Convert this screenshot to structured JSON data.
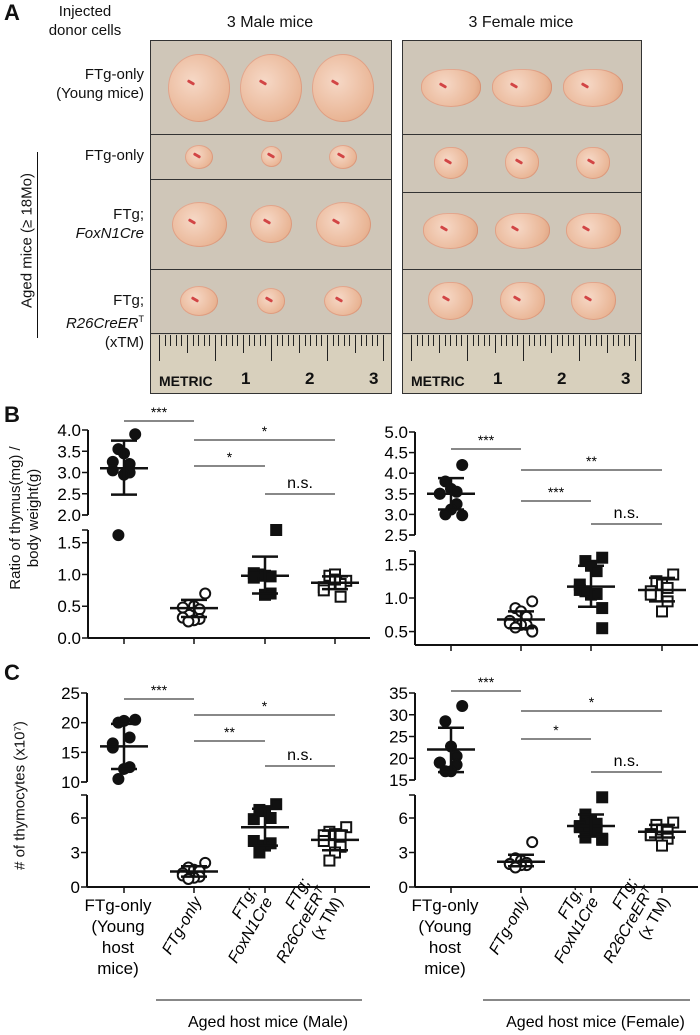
{
  "panel_a": {
    "letter": "A",
    "header_left": "Injected donor cells",
    "col_male": "3 Male mice",
    "col_female": "3 Female mice",
    "rows": [
      {
        "line1": "FTg-only",
        "line2": "(Young mice)",
        "line3": ""
      },
      {
        "line1": "FTg-only",
        "line2": "",
        "line3": ""
      },
      {
        "line1": "FTg;",
        "line2": "FoxN1Cre",
        "line3": ""
      },
      {
        "line1": "FTg;",
        "line2": "R26CreER",
        "sup": "T",
        "line3": "(xTM)"
      }
    ],
    "aged_label": "Aged mice (≥ 18Mo)",
    "ruler_metric": "METRIC",
    "ruler_marks": [
      "1",
      "2",
      "3"
    ]
  },
  "panel_b": {
    "letter": "B",
    "ylabel_line1": "Ratio of thymus(mg) /",
    "ylabel_line2": "body weight(g)"
  },
  "panel_c": {
    "letter": "C",
    "ylabel": "# of thymocytes (x10⁷)"
  },
  "xaxis": {
    "labels": [
      {
        "lines": [
          "FTg-only",
          "(Young",
          "host",
          "mice)"
        ]
      },
      {
        "lines": [
          "FTg-only"
        ]
      },
      {
        "lines": [
          "FTg;",
          "FoxN1Cre"
        ]
      },
      {
        "lines": [
          "FTg;",
          "R26CreERᵀ",
          "(x TM)"
        ]
      }
    ],
    "group_male": "Aged host mice (Male)",
    "group_female": "Aged host mice (Female)"
  },
  "chart_data": [
    {
      "id": "B-male",
      "type": "scatter",
      "categories": [
        "FTg-only (Young host mice)",
        "FTg-only",
        "FTg; FoxN1Cre",
        "FTg; R26CreERT (x TM)"
      ],
      "broken_axis": true,
      "upper_range": [
        2.0,
        4.0
      ],
      "upper_ticks": [
        "2.0",
        "2.5",
        "3.0",
        "3.5",
        "4.0"
      ],
      "lower_range": [
        0.0,
        1.7
      ],
      "lower_ticks": [
        "0.0",
        "0.5",
        "1.0",
        "1.5"
      ],
      "groups": [
        {
          "marker": "filled-circle",
          "values": [
            3.9,
            3.55,
            3.45,
            3.2,
            3.25,
            3.05,
            3.0,
            2.95,
            1.62
          ],
          "mean": 3.1,
          "sd": [
            2.48,
            3.75
          ]
        },
        {
          "marker": "open-circle",
          "values": [
            0.7,
            0.52,
            0.5,
            0.45,
            0.48,
            0.32,
            0.3,
            0.28,
            0.26
          ],
          "mean": 0.47,
          "sd": [
            0.33,
            0.6
          ]
        },
        {
          "marker": "filled-square",
          "values": [
            1.7,
            1.0,
            0.98,
            0.97,
            1.02,
            0.95,
            0.7,
            0.68
          ],
          "mean": 0.98,
          "sd": [
            0.7,
            1.28
          ]
        },
        {
          "marker": "open-square",
          "values": [
            0.9,
            0.98,
            1.0,
            0.85,
            0.8,
            0.75,
            0.65,
            0.92
          ],
          "mean": 0.87,
          "sd": [
            0.77,
            0.97
          ]
        }
      ],
      "significance": [
        {
          "pair": [
            1,
            2
          ],
          "label": "***"
        },
        {
          "pair": [
            2,
            4
          ],
          "label": "*"
        },
        {
          "pair": [
            2,
            3
          ],
          "label": "*"
        },
        {
          "pair": [
            3,
            4
          ],
          "label": "n.s."
        }
      ]
    },
    {
      "id": "B-female",
      "type": "scatter",
      "categories": [
        "FTg-only (Young host mice)",
        "FTg-only",
        "FTg; FoxN1Cre",
        "FTg; R26CreERT (x TM)"
      ],
      "broken_axis": true,
      "upper_range": [
        2.5,
        5.0
      ],
      "upper_ticks": [
        "2.5",
        "3.0",
        "3.5",
        "4.0",
        "4.5",
        "5.0"
      ],
      "lower_range": [
        0.3,
        1.7
      ],
      "lower_ticks": [
        "0.5",
        "1.0",
        "1.5"
      ],
      "groups": [
        {
          "marker": "filled-circle",
          "values": [
            4.2,
            3.8,
            3.62,
            3.55,
            3.5,
            3.5,
            3.25,
            3.12,
            3.0,
            2.98
          ],
          "mean": 3.5,
          "sd": [
            3.12,
            3.88
          ]
        },
        {
          "marker": "open-circle",
          "values": [
            0.95,
            0.85,
            0.8,
            0.72,
            0.66,
            0.62,
            0.6,
            0.6,
            0.56,
            0.52,
            0.5
          ],
          "mean": 0.68,
          "sd": [
            0.55,
            0.8
          ]
        },
        {
          "marker": "filled-square",
          "values": [
            1.6,
            1.55,
            1.48,
            1.4,
            1.2,
            1.12,
            1.06,
            1.05,
            1.1,
            0.85,
            0.55
          ],
          "mean": 1.17,
          "sd": [
            0.87,
            1.48
          ]
        },
        {
          "marker": "open-square",
          "values": [
            1.35,
            1.25,
            1.2,
            1.15,
            1.1,
            1.05,
            0.95,
            0.8
          ],
          "mean": 1.12,
          "sd": [
            0.95,
            1.3
          ]
        }
      ],
      "significance": [
        {
          "pair": [
            1,
            2
          ],
          "label": "***"
        },
        {
          "pair": [
            2,
            4
          ],
          "label": "**"
        },
        {
          "pair": [
            2,
            3
          ],
          "label": "***"
        },
        {
          "pair": [
            3,
            4
          ],
          "label": "n.s."
        }
      ]
    },
    {
      "id": "C-male",
      "type": "scatter",
      "categories": [
        "FTg-only (Young host mice)",
        "FTg-only",
        "FTg; FoxN1Cre",
        "FTg; R26CreERT (x TM)"
      ],
      "broken_axis": true,
      "upper_range": [
        10,
        25
      ],
      "upper_ticks": [
        "10",
        "15",
        "20",
        "25"
      ],
      "lower_range": [
        0,
        8
      ],
      "lower_ticks": [
        "0",
        "3",
        "6"
      ],
      "groups": [
        {
          "marker": "filled-circle",
          "values": [
            20.5,
            20.0,
            20.3,
            17.5,
            16.5,
            15.8,
            12.5,
            12.2,
            10.5
          ],
          "mean": 16.0,
          "sd": [
            12.2,
            19.8
          ]
        },
        {
          "marker": "open-circle",
          "values": [
            2.1,
            1.7,
            1.5,
            1.4,
            1.2,
            1.0,
            0.9,
            0.8,
            0.7
          ],
          "mean": 1.35,
          "sd": [
            0.9,
            1.8
          ]
        },
        {
          "marker": "filled-square",
          "values": [
            7.2,
            6.7,
            6.6,
            6.0,
            5.9,
            4.0,
            3.8,
            3.6,
            3.0
          ],
          "mean": 5.2,
          "sd": [
            3.6,
            6.8
          ]
        },
        {
          "marker": "open-square",
          "values": [
            5.2,
            4.8,
            4.6,
            4.5,
            4.5,
            4.0,
            3.5,
            3.0,
            2.3
          ],
          "mean": 4.1,
          "sd": [
            3.2,
            4.9
          ]
        }
      ],
      "significance": [
        {
          "pair": [
            1,
            2
          ],
          "label": "***"
        },
        {
          "pair": [
            2,
            4
          ],
          "label": "*"
        },
        {
          "pair": [
            2,
            3
          ],
          "label": "**"
        },
        {
          "pair": [
            3,
            4
          ],
          "label": "n.s."
        }
      ]
    },
    {
      "id": "C-female",
      "type": "scatter",
      "categories": [
        "FTg-only (Young host mice)",
        "FTg-only",
        "FTg; FoxN1Cre",
        "FTg; R26CreERT (x TM)"
      ],
      "broken_axis": true,
      "upper_range": [
        15,
        35
      ],
      "upper_ticks": [
        "15",
        "20",
        "25",
        "30",
        "35"
      ],
      "lower_range": [
        0,
        8
      ],
      "lower_ticks": [
        "0",
        "3",
        "6"
      ],
      "groups": [
        {
          "marker": "filled-circle",
          "values": [
            32,
            28.5,
            22.7,
            20.5,
            19,
            19,
            18.5,
            17,
            17
          ],
          "mean": 22.0,
          "sd": [
            16.8,
            27.0
          ]
        },
        {
          "marker": "open-circle",
          "values": [
            3.9,
            2.5,
            2.3,
            2.1,
            2.0,
            2.0,
            1.9,
            1.9,
            1.7
          ],
          "mean": 2.2,
          "sd": [
            1.8,
            2.8
          ]
        },
        {
          "marker": "filled-square",
          "values": [
            7.8,
            6.3,
            5.7,
            5.5,
            5.3,
            5.2,
            5.0,
            4.8,
            4.3,
            4.2,
            4.1
          ],
          "mean": 5.3,
          "sd": [
            4.4,
            6.3
          ]
        },
        {
          "marker": "open-square",
          "values": [
            5.6,
            5.4,
            5.0,
            4.8,
            4.6,
            4.5,
            4.2,
            3.6
          ],
          "mean": 4.8,
          "sd": [
            4.3,
            5.4
          ]
        }
      ],
      "significance": [
        {
          "pair": [
            1,
            2
          ],
          "label": "***"
        },
        {
          "pair": [
            2,
            4
          ],
          "label": "*"
        },
        {
          "pair": [
            2,
            3
          ],
          "label": "*"
        },
        {
          "pair": [
            3,
            4
          ],
          "label": "n.s."
        }
      ]
    }
  ]
}
